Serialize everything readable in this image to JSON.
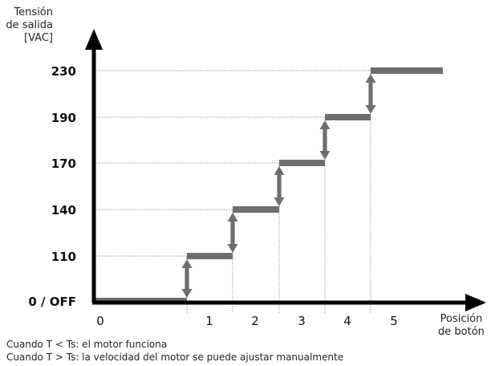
{
  "chart_data": {
    "type": "step",
    "ylabel": [
      "Tensión",
      "de salida",
      "[VAC]"
    ],
    "xlabel": [
      "Posición",
      "de botón"
    ],
    "y_ticks": [
      "0 / OFF",
      "110",
      "140",
      "170",
      "190",
      "230"
    ],
    "x_ticks": [
      "0",
      "1",
      "2",
      "3",
      "4",
      "5"
    ],
    "steps": [
      {
        "position": "0",
        "voltage": "0 / OFF"
      },
      {
        "position": "1",
        "voltage": "110"
      },
      {
        "position": "2",
        "voltage": "140"
      },
      {
        "position": "3",
        "voltage": "170"
      },
      {
        "position": "4",
        "voltage": "190"
      },
      {
        "position": "5",
        "voltage": "230"
      }
    ],
    "grid": "dotted guide lines",
    "colors": {
      "step": "#6e6e6e",
      "axis": "#000000",
      "guide": "#9a9a9a"
    }
  },
  "notes": [
    "Cuando T < Ts: el motor funciona",
    "Cuando T > Ts: la velocidad del motor se puede ajustar manualmente"
  ]
}
